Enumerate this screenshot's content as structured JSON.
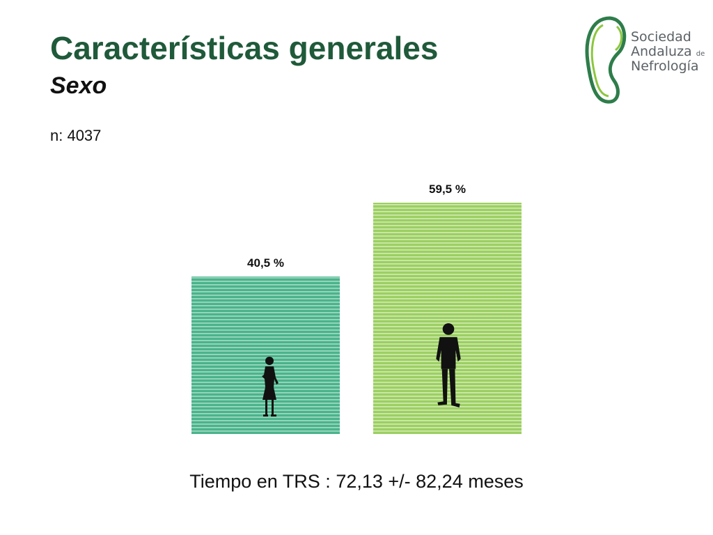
{
  "slide": {
    "title": "Características generales",
    "subtitle": "Sexo",
    "n_label": "n: 4037",
    "footer": "Tiempo en TRS : 72,13 +/- 82,24 meses"
  },
  "logo": {
    "line1": "Sociedad",
    "line2": "Andaluza",
    "line2_suffix": "de",
    "line3": "Nefrología"
  },
  "colors": {
    "title": "#1f5a3a",
    "bar_female": "#4bb38c",
    "bar_female_stripe": "#a3dcc5",
    "bar_male": "#9ccf63",
    "bar_male_stripe": "#d2ecb2",
    "logo_green": "#2e7d4a",
    "logo_lime": "#8cc63f"
  },
  "chart_data": {
    "type": "bar",
    "categories": [
      "",
      ""
    ],
    "values": [
      40.5,
      59.5
    ],
    "data_labels": [
      "40,5 %",
      "59,5 %"
    ],
    "icons": [
      "female-silhouette-icon",
      "male-silhouette-icon"
    ],
    "title": "",
    "xlabel": "",
    "ylabel": "",
    "ylim": [
      0,
      60
    ],
    "grid": false,
    "legend": "none"
  }
}
